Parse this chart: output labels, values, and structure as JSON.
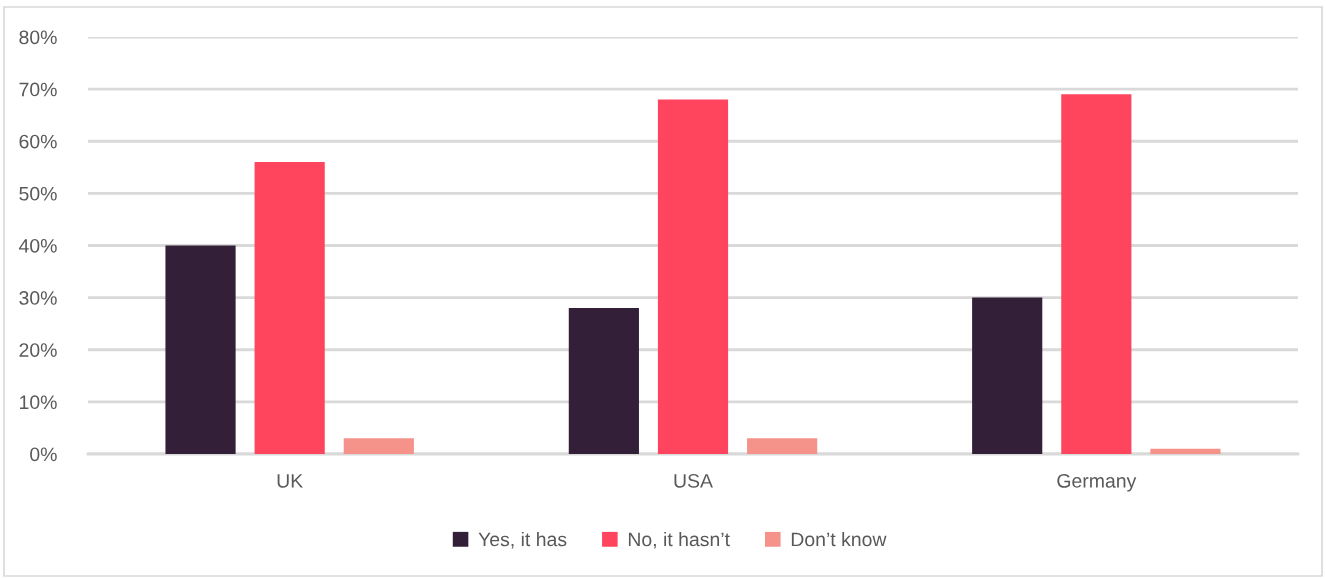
{
  "chart_data": {
    "type": "bar",
    "categories": [
      "UK",
      "USA",
      "Germany"
    ],
    "series": [
      {
        "name": "Yes, it has",
        "color": "#331f38",
        "values": [
          40,
          28,
          30
        ]
      },
      {
        "name": "No, it hasn’t",
        "color": "#ff455e",
        "values": [
          56,
          68,
          69
        ]
      },
      {
        "name": "Don’t know",
        "color": "#f5938b",
        "values": [
          3,
          3,
          1
        ]
      }
    ],
    "ylim": [
      0,
      80
    ],
    "yticks": [
      {
        "value": 0,
        "label": "0%"
      },
      {
        "value": 10,
        "label": "10%"
      },
      {
        "value": 20,
        "label": "20%"
      },
      {
        "value": 30,
        "label": "30%"
      },
      {
        "value": 40,
        "label": "40%"
      },
      {
        "value": 50,
        "label": "50%"
      },
      {
        "value": 60,
        "label": "60%"
      },
      {
        "value": 70,
        "label": "70%"
      },
      {
        "value": 80,
        "label": "80%"
      }
    ],
    "grid": "y",
    "legend": "bottom"
  }
}
